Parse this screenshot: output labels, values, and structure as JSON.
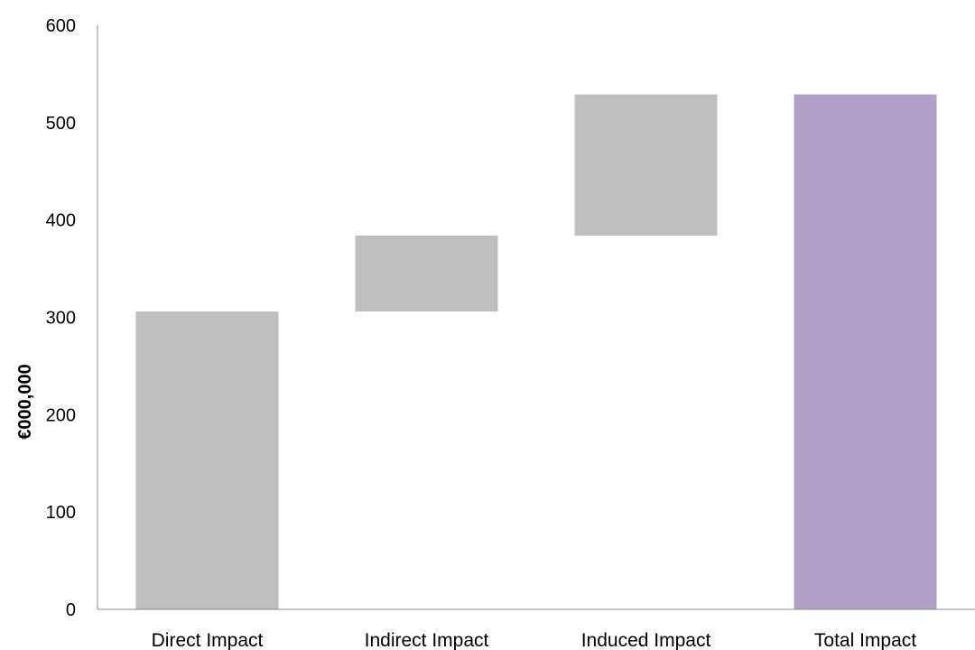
{
  "chart_data": {
    "type": "bar",
    "subtype": "waterfall",
    "title": "",
    "xlabel": "",
    "ylabel": "€000,000",
    "ylim": [
      0,
      600
    ],
    "yticks": [
      0,
      100,
      200,
      300,
      400,
      500,
      600
    ],
    "grid": false,
    "legend": "none",
    "categories": [
      "Direct Impact",
      "Indirect Impact",
      "Induced Impact",
      "Total Impact"
    ],
    "values": [
      306,
      78,
      145,
      529
    ],
    "bars": [
      {
        "category": "Direct Impact",
        "base": 0,
        "top": 306,
        "value": 306,
        "color": "#bfbfbf"
      },
      {
        "category": "Indirect Impact",
        "base": 306,
        "top": 384,
        "value": 78,
        "color": "#bfbfbf"
      },
      {
        "category": "Induced Impact",
        "base": 384,
        "top": 529,
        "value": 145,
        "color": "#bfbfbf"
      },
      {
        "category": "Total Impact",
        "base": 0,
        "top": 529,
        "value": 529,
        "color": "#b1a0c7"
      }
    ],
    "colors": {
      "component": "#bfbfbf",
      "total": "#b1a0c7",
      "axis": "#8c8c8c"
    }
  }
}
